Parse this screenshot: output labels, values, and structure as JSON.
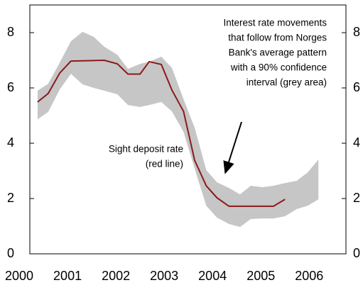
{
  "chart_data": {
    "type": "line",
    "xlim": [
      2000.22,
      2006.76
    ],
    "xticks": [
      2000,
      2001,
      2002,
      2003,
      2004,
      2005,
      2006
    ],
    "ylim": [
      0,
      9
    ],
    "yticks": [
      0,
      2,
      4,
      6,
      8
    ],
    "y2lim": [
      0,
      9
    ],
    "y2ticks": [
      0,
      2,
      4,
      6,
      8
    ],
    "band": {
      "color": "#c6c6c6",
      "x": [
        2000.38,
        2000.6,
        2000.84,
        2001.07,
        2001.31,
        2001.54,
        2001.76,
        2002.03,
        2002.25,
        2002.5,
        2002.69,
        2002.94,
        2003.16,
        2003.4,
        2003.63,
        2003.87,
        2004.09,
        2004.34,
        2004.57,
        2004.79,
        2005.03,
        2005.26,
        2005.5,
        2005.74,
        2005.97,
        2006.19
      ],
      "upper": [
        5.9,
        6.15,
        6.92,
        7.69,
        8.03,
        7.85,
        7.49,
        7.2,
        6.69,
        6.87,
        6.95,
        7.13,
        6.72,
        5.59,
        4.56,
        3.03,
        2.59,
        2.38,
        2.15,
        2.46,
        2.41,
        2.46,
        2.56,
        2.64,
        2.95,
        3.41
      ],
      "lower": [
        4.87,
        5.13,
        5.95,
        6.51,
        6.13,
        6.0,
        5.9,
        5.77,
        5.38,
        5.31,
        5.38,
        5.49,
        5.15,
        4.41,
        3.08,
        1.74,
        1.31,
        1.08,
        0.97,
        1.26,
        1.28,
        1.28,
        1.36,
        1.62,
        1.74,
        1.97
      ]
    },
    "series": [
      {
        "color": "#8b1a1a",
        "x": [
          2000.38,
          2000.6,
          2000.84,
          2001.07,
          2001.76,
          2002.03,
          2002.25,
          2002.5,
          2002.69,
          2002.94,
          2003.16,
          2003.4,
          2003.63,
          2003.87,
          2004.09,
          2004.34,
          2005.26,
          2005.5
        ],
        "values": [
          5.49,
          5.8,
          6.54,
          6.97,
          7.0,
          6.87,
          6.5,
          6.5,
          6.95,
          6.85,
          5.92,
          5.15,
          3.38,
          2.46,
          2.03,
          1.72,
          1.72,
          1.97
        ]
      }
    ],
    "annotations": [
      {
        "lines": [
          "Interest rate movements",
          "that follow from Norges",
          "Bank's average pattern",
          "with a 90% confidence",
          "interval (grey area)"
        ]
      },
      {
        "lines": [
          "Sight deposit rate",
          "(red line)"
        ]
      }
    ]
  }
}
